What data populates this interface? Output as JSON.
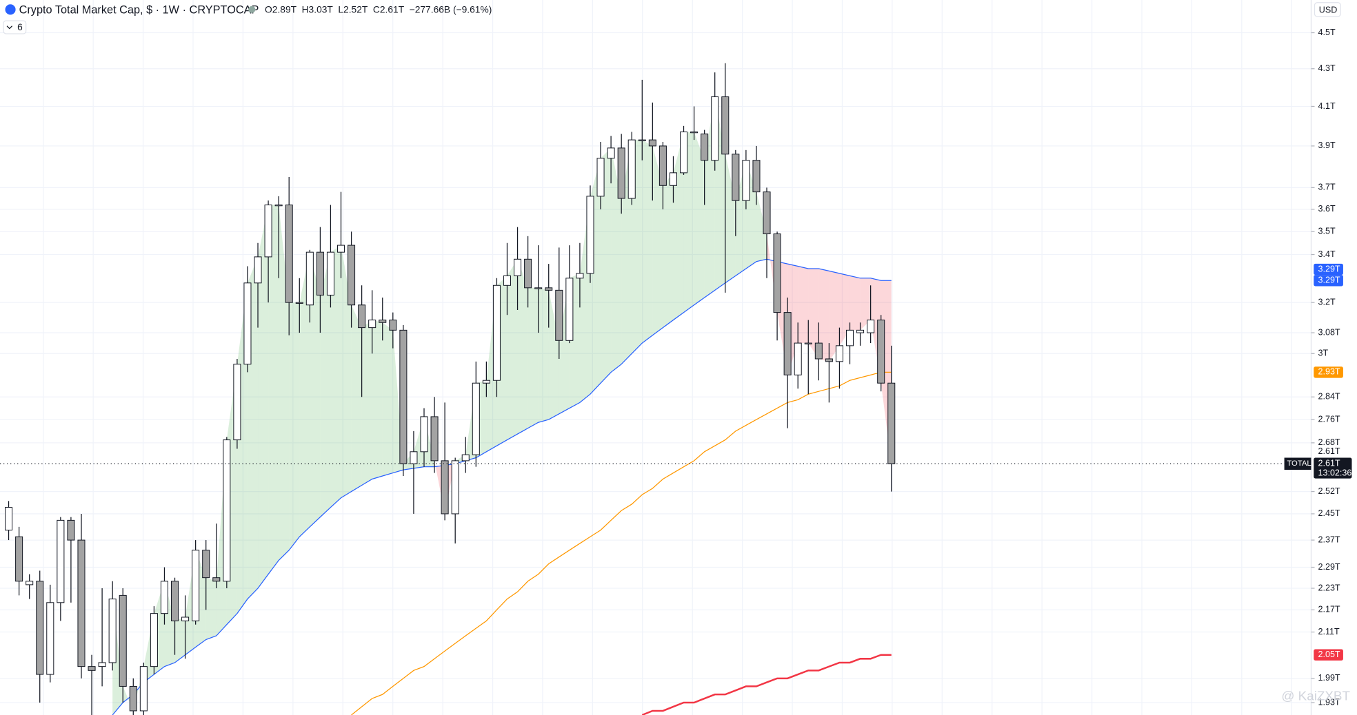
{
  "chart_data": {
    "type": "candlestick",
    "title": "Crypto Total Market Cap, $ · 1W · CRYPTOCAP",
    "ohlc_legend": [
      "O2.89T",
      "H3.03T",
      "L2.52T",
      "C2.61T",
      "−277.66B (−9.61%)"
    ],
    "indicator_toggle": "6",
    "currency": "USD",
    "watermark": "@ KaiZXBT",
    "log_scale": true,
    "grid": true,
    "up_color": "#ffffff",
    "down_color": "#a3a3a3",
    "fill_up_color": "rgba(76,175,80,0.2)",
    "fill_down_color": "rgba(242,54,69,0.2)",
    "open": [
      2.4,
      2.38,
      2.24,
      2.25,
      2.0,
      2.19,
      2.43,
      2.37,
      2.02,
      2.02,
      2.03,
      2.21,
      1.97,
      1.91,
      2.02,
      2.16,
      2.25,
      2.14,
      2.14,
      2.34,
      2.26,
      2.25,
      2.69,
      2.96,
      3.28,
      3.39,
      3.62,
      3.62,
      3.2,
      3.19,
      3.41,
      3.23,
      3.41,
      3.44,
      3.19,
      3.1,
      3.13,
      3.13,
      3.09,
      2.61,
      2.65,
      2.77,
      2.62,
      2.45,
      2.62,
      2.64,
      2.89,
      2.9,
      3.27,
      3.31,
      3.38,
      3.26,
      3.26,
      3.25,
      3.05,
      3.3,
      3.32,
      3.66,
      3.84,
      3.89,
      3.65,
      3.93,
      3.93,
      3.9,
      3.71,
      3.77,
      3.97,
      3.96,
      3.83,
      4.15,
      3.86,
      3.64,
      3.83,
      3.68,
      3.49,
      3.16,
      2.92,
      3.04,
      3.04,
      2.98,
      2.97,
      3.03,
      3.08,
      3.08,
      3.13,
      2.89
    ],
    "high": [
      2.49,
      2.41,
      2.27,
      2.28,
      2.24,
      2.44,
      2.44,
      2.45,
      2.05,
      2.23,
      2.25,
      2.23,
      1.99,
      2.03,
      2.18,
      2.29,
      2.26,
      2.21,
      2.37,
      2.37,
      2.42,
      2.7,
      2.98,
      3.35,
      3.45,
      3.64,
      3.66,
      3.75,
      3.3,
      3.42,
      3.52,
      3.62,
      3.68,
      3.5,
      3.27,
      3.25,
      3.22,
      3.16,
      3.11,
      2.72,
      2.8,
      2.84,
      2.82,
      2.63,
      2.7,
      2.97,
      2.97,
      3.3,
      3.45,
      3.52,
      3.48,
      3.44,
      3.36,
      3.43,
      3.44,
      3.45,
      3.71,
      3.92,
      3.95,
      3.96,
      3.97,
      4.24,
      4.12,
      3.92,
      3.85,
      4.0,
      4.1,
      3.98,
      4.28,
      4.33,
      3.88,
      3.88,
      3.9,
      3.7,
      3.5,
      3.22,
      3.12,
      3.13,
      3.12,
      3.04,
      3.1,
      3.12,
      3.12,
      3.27,
      3.15,
      3.03
    ],
    "low": [
      2.37,
      2.21,
      2.2,
      1.93,
      1.98,
      2.14,
      2.19,
      1.99,
      1.9,
      1.97,
      2.01,
      1.93,
      1.9,
      1.9,
      2.0,
      2.13,
      2.05,
      2.04,
      2.13,
      2.17,
      2.23,
      2.23,
      2.66,
      2.93,
      3.1,
      3.2,
      3.3,
      3.07,
      3.08,
      3.12,
      3.08,
      3.18,
      3.3,
      3.1,
      2.84,
      3.0,
      3.05,
      3.02,
      2.57,
      2.45,
      2.6,
      2.58,
      2.43,
      2.36,
      2.58,
      2.6,
      2.84,
      2.84,
      3.15,
      3.17,
      3.18,
      3.08,
      3.1,
      2.98,
      3.04,
      3.18,
      3.28,
      3.6,
      3.72,
      3.58,
      3.62,
      3.83,
      3.64,
      3.6,
      3.63,
      3.76,
      3.93,
      3.62,
      3.78,
      3.24,
      3.48,
      3.6,
      3.62,
      3.3,
      3.05,
      2.73,
      2.87,
      2.85,
      2.9,
      2.82,
      2.87,
      2.96,
      3.03,
      3.04,
      2.86,
      2.52
    ],
    "close": [
      2.47,
      2.25,
      2.25,
      2.0,
      2.19,
      2.43,
      2.37,
      2.02,
      2.01,
      2.03,
      2.2,
      1.97,
      1.91,
      2.02,
      2.16,
      2.25,
      2.14,
      2.15,
      2.34,
      2.26,
      2.25,
      2.69,
      2.96,
      3.28,
      3.39,
      3.62,
      3.62,
      3.2,
      3.2,
      3.41,
      3.23,
      3.41,
      3.44,
      3.19,
      3.1,
      3.13,
      3.12,
      3.09,
      2.61,
      2.65,
      2.77,
      2.62,
      2.45,
      2.62,
      2.64,
      2.89,
      2.9,
      3.27,
      3.31,
      3.38,
      3.26,
      3.26,
      3.25,
      3.05,
      3.3,
      3.32,
      3.66,
      3.84,
      3.89,
      3.65,
      3.93,
      3.93,
      3.9,
      3.71,
      3.77,
      3.97,
      3.97,
      3.83,
      4.15,
      3.86,
      3.64,
      3.83,
      3.68,
      3.49,
      3.16,
      2.92,
      3.04,
      3.04,
      2.98,
      2.97,
      3.03,
      3.09,
      3.09,
      3.13,
      2.89,
      2.61
    ],
    "series": [
      {
        "color": "#2962ff",
        "width": 1,
        "fill": true,
        "values": [
          null,
          null,
          null,
          null,
          null,
          null,
          null,
          null,
          null,
          null,
          1.9,
          1.93,
          1.95,
          1.98,
          2.0,
          2.02,
          2.03,
          2.05,
          2.07,
          2.09,
          2.1,
          2.13,
          2.16,
          2.2,
          2.23,
          2.27,
          2.31,
          2.34,
          2.38,
          2.41,
          2.44,
          2.47,
          2.5,
          2.52,
          2.54,
          2.56,
          2.57,
          2.58,
          2.59,
          2.595,
          2.6,
          2.6,
          2.605,
          2.61,
          2.62,
          2.63,
          2.65,
          2.67,
          2.69,
          2.71,
          2.73,
          2.75,
          2.76,
          2.78,
          2.8,
          2.82,
          2.85,
          2.89,
          2.93,
          2.96,
          3.0,
          3.04,
          3.07,
          3.1,
          3.13,
          3.16,
          3.19,
          3.22,
          3.25,
          3.28,
          3.31,
          3.34,
          3.37,
          3.38,
          3.37,
          3.36,
          3.35,
          3.34,
          3.34,
          3.33,
          3.32,
          3.31,
          3.3,
          3.3,
          3.29,
          3.29
        ]
      },
      {
        "color": "#ff9800",
        "width": 1,
        "values": [
          null,
          null,
          null,
          null,
          null,
          null,
          null,
          null,
          null,
          null,
          null,
          null,
          null,
          null,
          null,
          null,
          null,
          null,
          null,
          null,
          null,
          null,
          null,
          null,
          null,
          null,
          null,
          null,
          null,
          null,
          null,
          null,
          null,
          1.9,
          1.92,
          1.94,
          1.95,
          1.97,
          1.99,
          2.01,
          2.02,
          2.04,
          2.06,
          2.08,
          2.1,
          2.12,
          2.14,
          2.17,
          2.2,
          2.22,
          2.25,
          2.27,
          2.3,
          2.32,
          2.34,
          2.36,
          2.38,
          2.4,
          2.43,
          2.46,
          2.48,
          2.51,
          2.53,
          2.56,
          2.58,
          2.6,
          2.62,
          2.65,
          2.67,
          2.69,
          2.72,
          2.74,
          2.76,
          2.78,
          2.8,
          2.82,
          2.83,
          2.85,
          2.86,
          2.87,
          2.88,
          2.9,
          2.91,
          2.92,
          2.93,
          2.93
        ]
      },
      {
        "color": "#f23645",
        "width": 2,
        "values": [
          null,
          null,
          null,
          null,
          null,
          null,
          null,
          null,
          null,
          null,
          null,
          null,
          null,
          null,
          null,
          null,
          null,
          null,
          null,
          null,
          null,
          null,
          null,
          null,
          null,
          null,
          null,
          null,
          null,
          null,
          null,
          null,
          null,
          null,
          null,
          null,
          null,
          null,
          null,
          null,
          null,
          null,
          null,
          null,
          null,
          null,
          null,
          null,
          null,
          null,
          null,
          null,
          null,
          null,
          null,
          null,
          null,
          null,
          null,
          null,
          null,
          1.9,
          1.91,
          1.91,
          1.92,
          1.93,
          1.93,
          1.94,
          1.95,
          1.95,
          1.96,
          1.97,
          1.97,
          1.98,
          1.99,
          1.99,
          2.0,
          2.01,
          2.01,
          2.02,
          2.03,
          2.03,
          2.04,
          2.04,
          2.05,
          2.05
        ]
      }
    ],
    "ylim": [
      1.9,
      4.69
    ],
    "yticks": [
      {
        "value": 1.93,
        "label": "1.93T"
      },
      {
        "value": 1.99,
        "label": "1.99T"
      },
      {
        "value": 2.11,
        "label": "2.11T"
      },
      {
        "value": 2.17,
        "label": "2.17T"
      },
      {
        "value": 2.23,
        "label": "2.23T"
      },
      {
        "value": 2.29,
        "label": "2.29T"
      },
      {
        "value": 2.37,
        "label": "2.37T"
      },
      {
        "value": 2.45,
        "label": "2.45T"
      },
      {
        "value": 2.52,
        "label": "2.52T"
      },
      {
        "value": 2.68,
        "label": "2.68T"
      },
      {
        "value": 2.76,
        "label": "2.76T"
      },
      {
        "value": 2.84,
        "label": "2.84T"
      },
      {
        "value": 3.0,
        "label": "3T"
      },
      {
        "value": 3.08,
        "label": "3.08T"
      },
      {
        "value": 3.2,
        "label": "3.2T"
      },
      {
        "value": 3.4,
        "label": "3.4T"
      },
      {
        "value": 3.5,
        "label": "3.5T"
      },
      {
        "value": 3.6,
        "label": "3.6T"
      },
      {
        "value": 3.7,
        "label": "3.7T"
      },
      {
        "value": 3.9,
        "label": "3.9T"
      },
      {
        "value": 4.1,
        "label": "4.1T"
      },
      {
        "value": 4.3,
        "label": "4.3T"
      },
      {
        "value": 4.5,
        "label": "4.5T"
      }
    ],
    "price_tags": [
      {
        "value": 3.29,
        "label": "3.29T",
        "color": "#2962ff"
      },
      {
        "value": 3.29,
        "label": "3.29T",
        "color": "#2962ff"
      },
      {
        "value": 2.93,
        "label": "2.93T",
        "color": "#ff9800"
      },
      {
        "value": 2.05,
        "label": "2.05T",
        "color": "#f23645"
      }
    ],
    "last_price": {
      "value": 2.61,
      "label": "2.61T",
      "axis_label": "2.61T",
      "name": "TOTAL",
      "countdown": "13:02:36",
      "color": "#131722"
    }
  }
}
